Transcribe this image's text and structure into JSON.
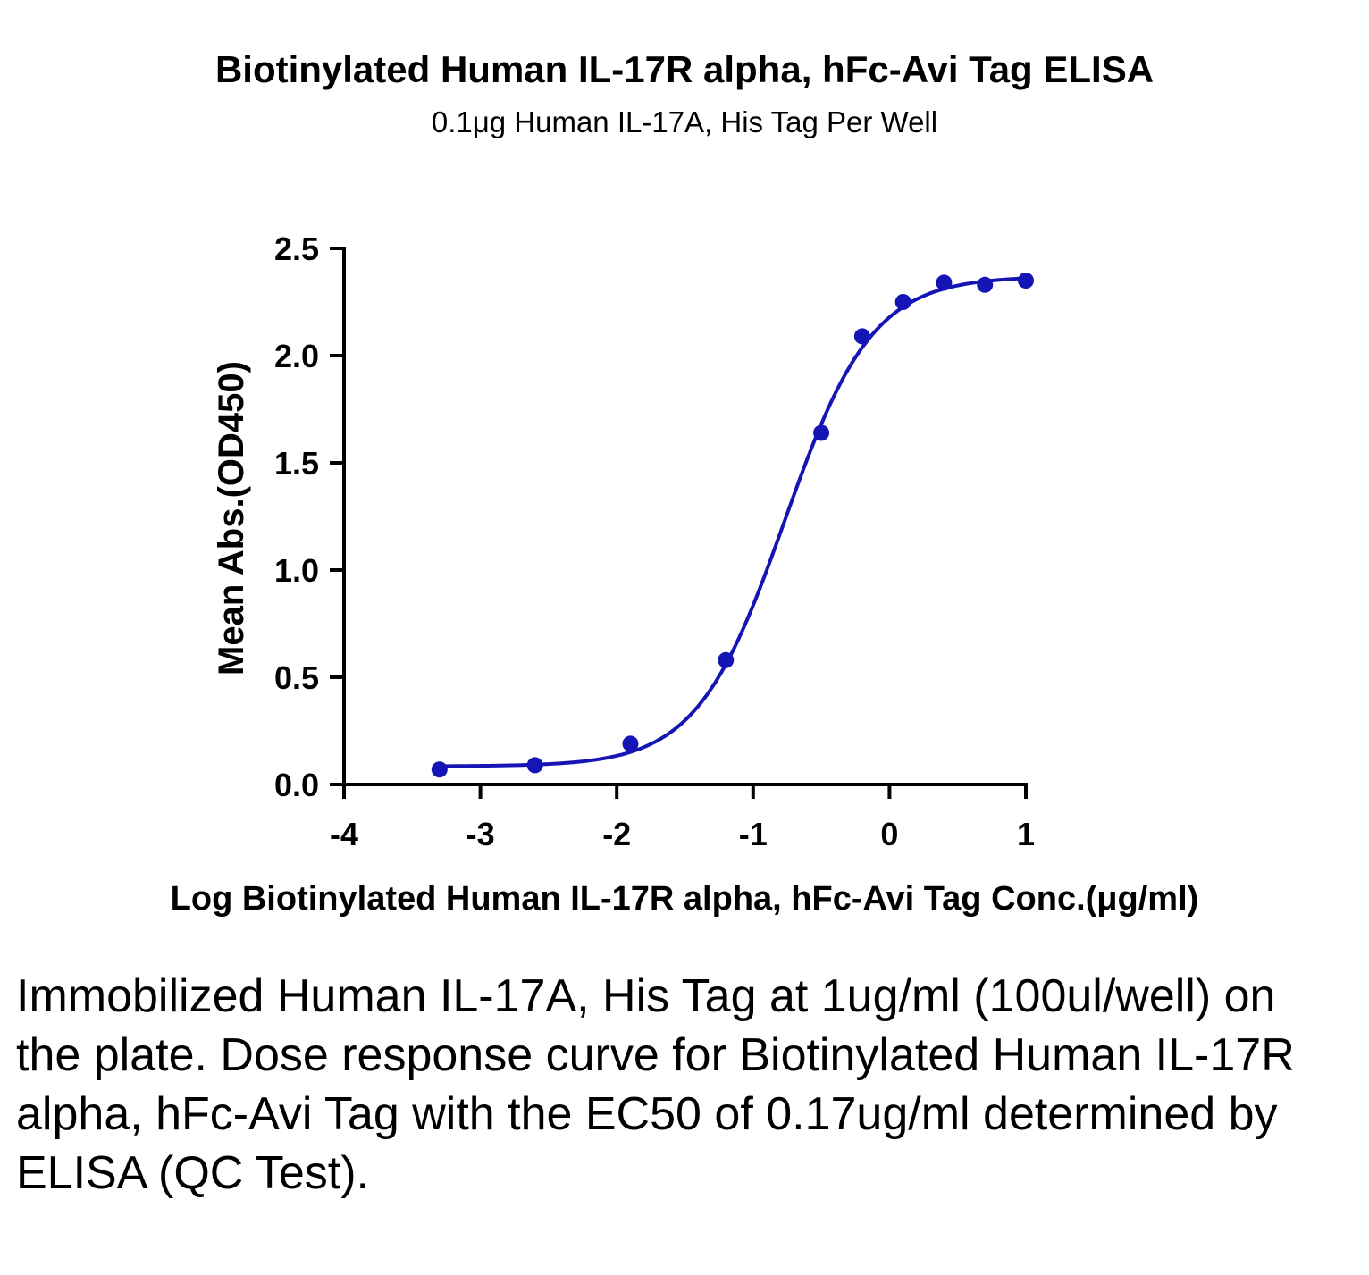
{
  "chart_data": {
    "type": "scatter",
    "title": "Biotinylated Human IL-17R alpha, hFc-Avi Tag ELISA",
    "subtitle": "0.1μg Human IL-17A, His Tag Per Well",
    "xlabel": "Log Biotinylated Human IL-17R alpha, hFc-Avi Tag Conc.(μg/ml)",
    "ylabel": "Mean Abs.(OD450)",
    "xlim": [
      -4,
      1
    ],
    "ylim": [
      0,
      2.5
    ],
    "xticks": [
      "-4",
      "-3",
      "-2",
      "-1",
      "0",
      "1"
    ],
    "yticks": [
      "0.0",
      "0.5",
      "1.0",
      "1.5",
      "2.0",
      "2.5"
    ],
    "grid": false,
    "color": "#1515b5",
    "series": [
      {
        "points": [
          {
            "x": -3.3,
            "y": 0.07
          },
          {
            "x": -2.6,
            "y": 0.09
          },
          {
            "x": -1.9,
            "y": 0.19
          },
          {
            "x": -1.2,
            "y": 0.58
          },
          {
            "x": -0.5,
            "y": 1.64
          },
          {
            "x": -0.2,
            "y": 2.09
          },
          {
            "x": 0.1,
            "y": 2.25
          },
          {
            "x": 0.4,
            "y": 2.34
          },
          {
            "x": 0.7,
            "y": 2.33
          },
          {
            "x": 1.0,
            "y": 2.35
          }
        ],
        "fit": {
          "model": "4PL",
          "bottom": 0.085,
          "top": 2.37,
          "logEC50": -0.77,
          "hillslope": 1.35
        }
      }
    ]
  },
  "caption": "Immobilized Human IL-17A, His Tag at 1ug/ml (100ul/well) on the plate. Dose response curve for Biotinylated Human IL-17R alpha, hFc-Avi Tag with the EC50 of 0.17ug/ml determined by ELISA (QC Test)."
}
